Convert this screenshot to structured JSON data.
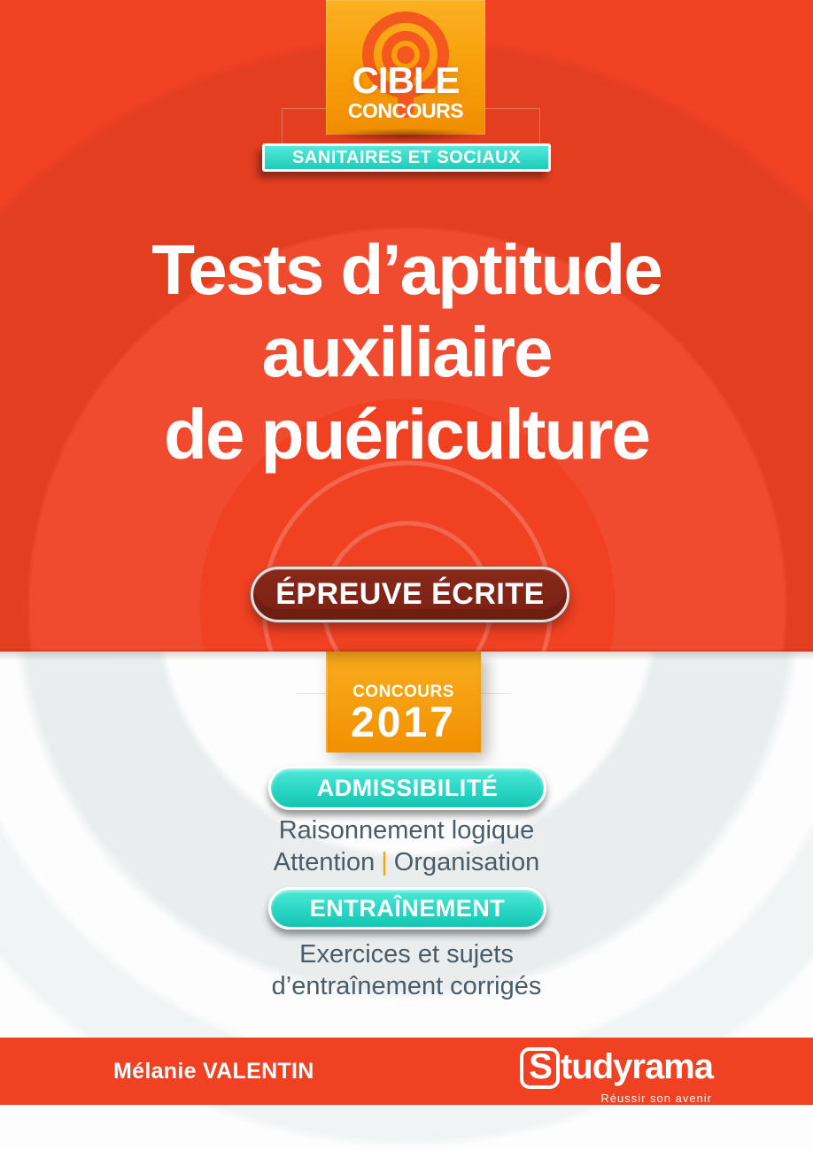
{
  "collection_badge": {
    "line1": "CIBLE",
    "line2": "CONCOURS"
  },
  "series_banner": "SANITAIRES ET SOCIAUX",
  "title": {
    "line1": "Tests d’aptitude",
    "line2": "auxiliaire",
    "line3": "de puériculture"
  },
  "epreuve_badge": "ÉPREUVE ÉCRITE",
  "concours_tab": {
    "label": "CONCOURS",
    "year": "2017"
  },
  "admissibilite": {
    "badge": "ADMISSIBILITÉ",
    "line1": "Raisonnement logique",
    "line2_left": "Attention",
    "line2_sep": "|",
    "line2_right": "Organisation"
  },
  "entrainement": {
    "badge": "ENTRAÎNEMENT",
    "line1": "Exercices et sujets",
    "line2": "d’entraînement corrigés"
  },
  "footer": {
    "author": "Mélanie VALENTIN",
    "publisher_initial": "S",
    "publisher_rest": "tudyrama",
    "publisher_tagline": "Réussir son avenir"
  },
  "colors": {
    "cover_red": "#f04123",
    "badge_orange_top": "#fbb023",
    "badge_orange_bottom": "#f08d00",
    "target_ring": "#f4581f",
    "teal_top": "#4fe8d6",
    "teal_bottom": "#14c4b2",
    "maroon_pill": "#7a2114",
    "slate_text": "#4a5c68",
    "separator_orange": "#f7a600"
  }
}
